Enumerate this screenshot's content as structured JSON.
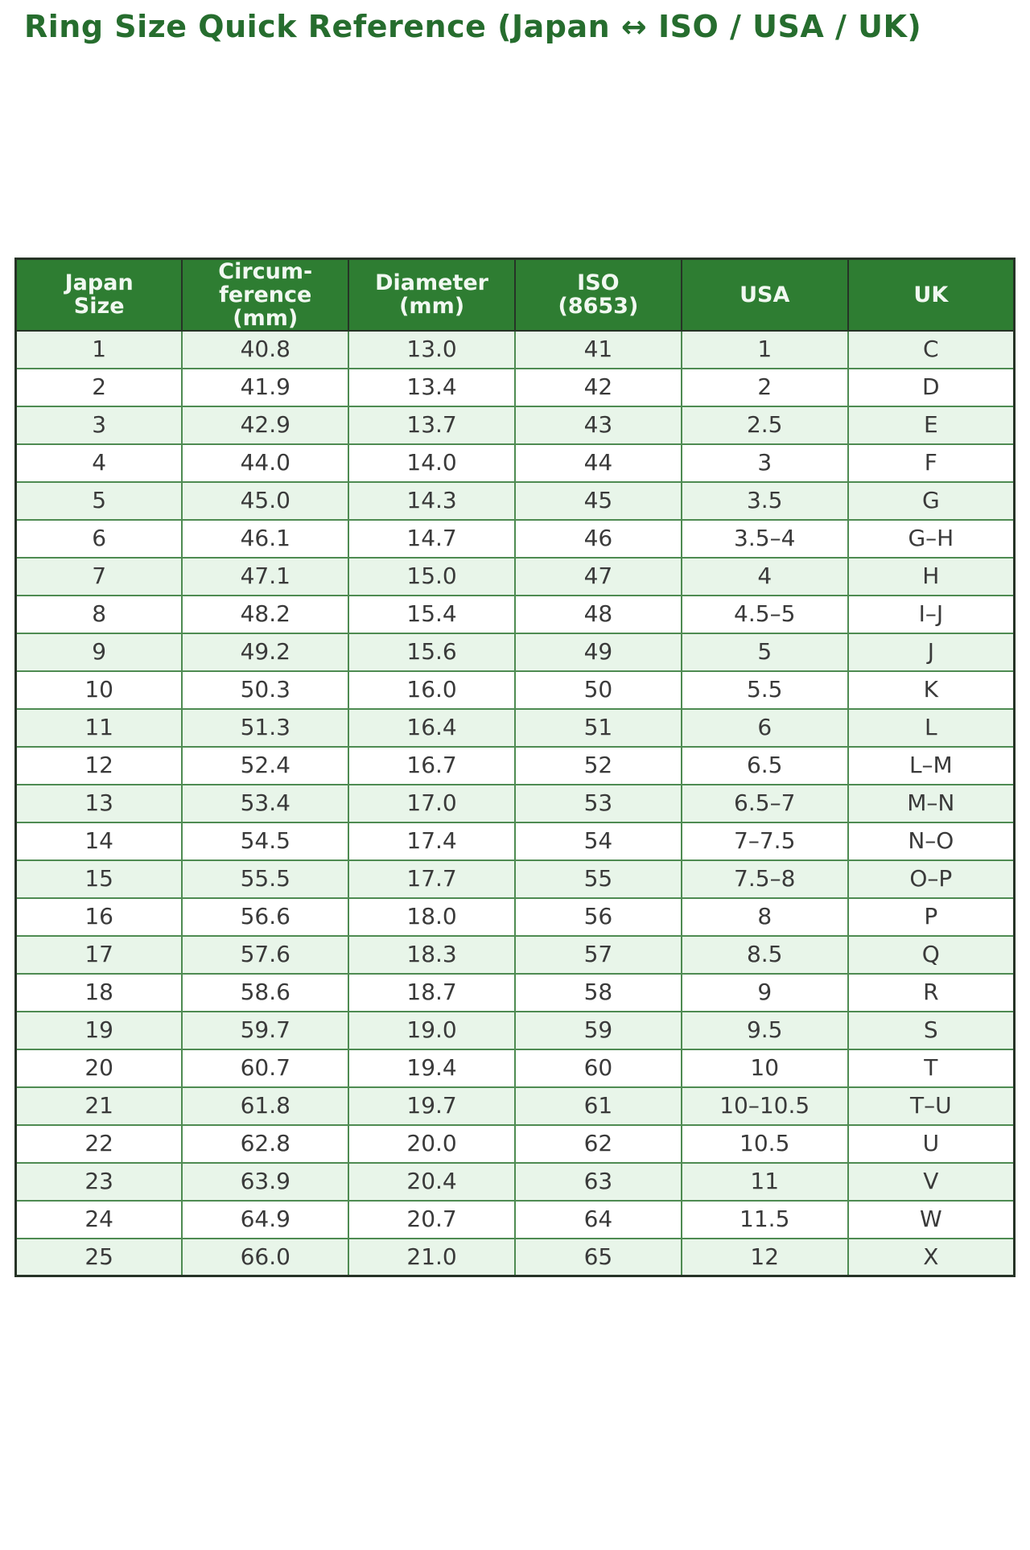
{
  "title": "Ring Size Quick Reference (Japan ↔ ISO / USA / UK)",
  "colors": {
    "title_text": "#266d2e",
    "header_bg": "#2e7d32",
    "header_text": "#f1f8f1",
    "row_alt_bg": "#e8f5e9",
    "row_bg": "#ffffff",
    "body_text": "#3a3a3a",
    "inner_border": "#4e8b52",
    "outer_border": "#263326"
  },
  "chart_data": {
    "type": "table",
    "title": "Ring Size Quick Reference (Japan ↔ ISO / USA / UK)",
    "columns": [
      "Japan\nSize",
      "Circum-\nference\n(mm)",
      "Diameter\n(mm)",
      "ISO\n(8653)",
      "USA",
      "UK"
    ],
    "rows": [
      [
        "1",
        "40.8",
        "13.0",
        "41",
        "1",
        "C"
      ],
      [
        "2",
        "41.9",
        "13.4",
        "42",
        "2",
        "D"
      ],
      [
        "3",
        "42.9",
        "13.7",
        "43",
        "2.5",
        "E"
      ],
      [
        "4",
        "44.0",
        "14.0",
        "44",
        "3",
        "F"
      ],
      [
        "5",
        "45.0",
        "14.3",
        "45",
        "3.5",
        "G"
      ],
      [
        "6",
        "46.1",
        "14.7",
        "46",
        "3.5–4",
        "G–H"
      ],
      [
        "7",
        "47.1",
        "15.0",
        "47",
        "4",
        "H"
      ],
      [
        "8",
        "48.2",
        "15.4",
        "48",
        "4.5–5",
        "I–J"
      ],
      [
        "9",
        "49.2",
        "15.6",
        "49",
        "5",
        "J"
      ],
      [
        "10",
        "50.3",
        "16.0",
        "50",
        "5.5",
        "K"
      ],
      [
        "11",
        "51.3",
        "16.4",
        "51",
        "6",
        "L"
      ],
      [
        "12",
        "52.4",
        "16.7",
        "52",
        "6.5",
        "L–M"
      ],
      [
        "13",
        "53.4",
        "17.0",
        "53",
        "6.5–7",
        "M–N"
      ],
      [
        "14",
        "54.5",
        "17.4",
        "54",
        "7–7.5",
        "N–O"
      ],
      [
        "15",
        "55.5",
        "17.7",
        "55",
        "7.5–8",
        "O–P"
      ],
      [
        "16",
        "56.6",
        "18.0",
        "56",
        "8",
        "P"
      ],
      [
        "17",
        "57.6",
        "18.3",
        "57",
        "8.5",
        "Q"
      ],
      [
        "18",
        "58.6",
        "18.7",
        "58",
        "9",
        "R"
      ],
      [
        "19",
        "59.7",
        "19.0",
        "59",
        "9.5",
        "S"
      ],
      [
        "20",
        "60.7",
        "19.4",
        "60",
        "10",
        "T"
      ],
      [
        "21",
        "61.8",
        "19.7",
        "61",
        "10–10.5",
        "T–U"
      ],
      [
        "22",
        "62.8",
        "20.0",
        "62",
        "10.5",
        "U"
      ],
      [
        "23",
        "63.9",
        "20.4",
        "63",
        "11",
        "V"
      ],
      [
        "24",
        "64.9",
        "20.7",
        "64",
        "11.5",
        "W"
      ],
      [
        "25",
        "66.0",
        "21.0",
        "65",
        "12",
        "X"
      ]
    ],
    "layout": {
      "zebra_striping": "odd data rows light green, even rows white",
      "text_align": "center",
      "header_style": "green background, white bold text",
      "grid": "on"
    }
  }
}
